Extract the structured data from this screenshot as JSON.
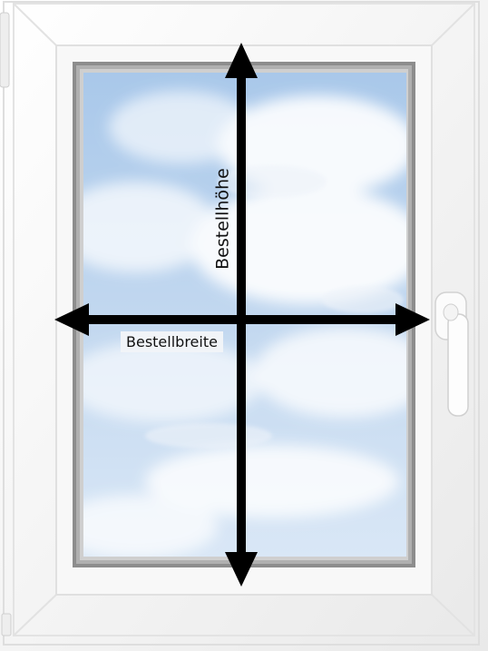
{
  "labels": {
    "width": "Bestellbreite",
    "height": "Bestellhöhe"
  },
  "colors": {
    "frame": "#f7f7f7",
    "frame_shadow": "#dcdcdc",
    "glass_sky": "#b9d2ee",
    "clouds": "#ffffff",
    "arrows": "#000000",
    "handle": "#fbfbfb"
  },
  "icons": {
    "window": "window-icon",
    "handle": "window-handle-icon",
    "hinge": "hinge-icon"
  }
}
